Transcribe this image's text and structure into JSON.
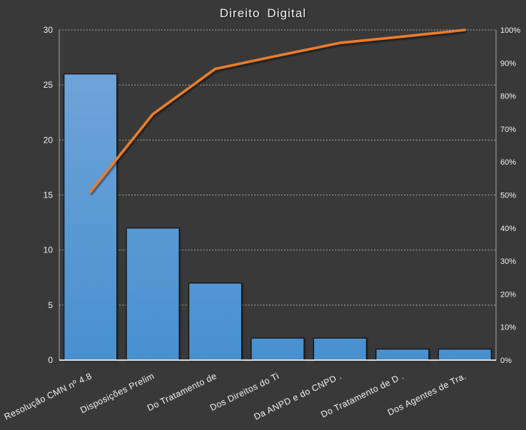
{
  "chart_data": {
    "type": "pareto",
    "title": "Direito Digital",
    "categories": [
      "Resolução CMN nº 4.8",
      "Disposições Prelim",
      "Do Tratamento de",
      "Dos Direitos do Ti",
      "Da ANPD e do CNPD .",
      "Do Tratamento de D .",
      "Dos Agentes de Tra."
    ],
    "series": [
      {
        "name": "bars",
        "type": "bar",
        "values": [
          26,
          12,
          7,
          2,
          2,
          1,
          1
        ]
      },
      {
        "name": "cumulative_pct",
        "type": "line",
        "values": [
          51.0,
          74.5,
          88.2,
          92.2,
          96.1,
          98.0,
          100.0
        ]
      }
    ],
    "left_axis": {
      "min": 0,
      "max": 30,
      "step": 5,
      "ticks": [
        "0",
        "5",
        "10",
        "15",
        "20",
        "25",
        "30"
      ]
    },
    "right_axis": {
      "min": 0,
      "max": 100,
      "step": 10,
      "ticks": [
        "0%",
        "10%",
        "20%",
        "30%",
        "40%",
        "50%",
        "60%",
        "70%",
        "80%",
        "90%",
        "100%"
      ]
    },
    "legend": "none",
    "grid": "dashed-horizontal",
    "colors": {
      "background": "#393939",
      "bar_gradient_top": "#74a7db",
      "bar_gradient_bottom": "#4890cf",
      "bar_border": "#0d0d0d",
      "line": "#e87d2e",
      "grid": "#c6c6c6",
      "axis": "#a8a8a8",
      "baseline": "#f2f2f2",
      "text": "#f0f0f0"
    }
  }
}
